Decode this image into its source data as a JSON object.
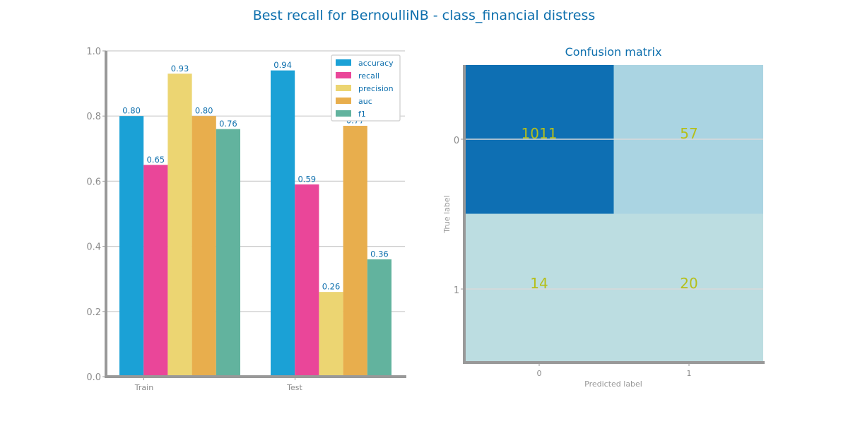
{
  "figure": {
    "title": "Best recall for BernoulliNB  - class_financial distress"
  },
  "colors": {
    "title": "#0d6fad",
    "axis": "#999999",
    "tick_text": "#8c8c8c",
    "grid": "#cccccc",
    "bar_label": "#0d6fad",
    "cm_text": "#b5bf1a",
    "cm_dark": "#0e6fb3",
    "cm_light1": "#aad4e2",
    "cm_light2": "#bcdde1"
  },
  "chart_data": [
    {
      "type": "bar",
      "title": "",
      "xlabel": "",
      "ylabel": "",
      "ylim": [
        0,
        1
      ],
      "yticks": [
        "0.0",
        "0.2",
        "0.4",
        "0.6",
        "0.8",
        "1.0"
      ],
      "grid": true,
      "legend_position": "top-right",
      "categories": [
        "Train",
        "Test"
      ],
      "series": [
        {
          "name": "accuracy",
          "color": "#1ba1d6",
          "values": [
            0.8,
            0.94
          ],
          "labels": [
            "0.80",
            "0.94"
          ]
        },
        {
          "name": "recall",
          "color": "#ea4699",
          "values": [
            0.65,
            0.59
          ],
          "labels": [
            "0.65",
            "0.59"
          ]
        },
        {
          "name": "precision",
          "color": "#ecd572",
          "values": [
            0.93,
            0.26
          ],
          "labels": [
            "0.93",
            "0.26"
          ]
        },
        {
          "name": "auc",
          "color": "#e8ae4d",
          "values": [
            0.8,
            0.77
          ],
          "labels": [
            "0.80",
            "0.77"
          ]
        },
        {
          "name": "f1",
          "color": "#62b39e",
          "values": [
            0.76,
            0.36
          ],
          "labels": [
            "0.76",
            "0.36"
          ]
        }
      ]
    },
    {
      "type": "heatmap",
      "title": "Confusion matrix",
      "xlabel": "Predicted label",
      "ylabel": "True label",
      "xticks": [
        "0",
        "1"
      ],
      "yticks": [
        "0",
        "1"
      ],
      "matrix": [
        [
          1011,
          57
        ],
        [
          14,
          20
        ]
      ],
      "labels": [
        [
          "1011",
          "57"
        ],
        [
          "14",
          "20"
        ]
      ]
    }
  ]
}
